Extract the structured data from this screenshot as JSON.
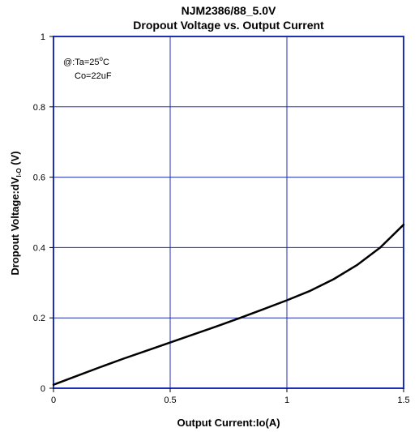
{
  "chart_data": {
    "type": "line",
    "title": "NJM2386/88_5.0V",
    "subtitle": "Dropout Voltage vs. Output Current",
    "xlabel": "Output Current:Io(A)",
    "ylabel_main": "Dropout Voltage:dV",
    "ylabel_sub": "I-O",
    "ylabel_unit": " (V)",
    "xlim": [
      0,
      1.5
    ],
    "ylim": [
      0,
      1
    ],
    "xticks": [
      0,
      0.5,
      1,
      1.5
    ],
    "xtick_labels": [
      "0",
      "0.5",
      "1",
      "1.5"
    ],
    "yticks": [
      0,
      0.2,
      0.4,
      0.6,
      0.8,
      1
    ],
    "ytick_labels": [
      "0",
      "0.2",
      "0.4",
      "0.6",
      "0.8",
      "1"
    ],
    "grid": true,
    "annotations": {
      "line1_prefix": "@:Ta=25",
      "line1_degree": "o",
      "line1_suffix": "C",
      "line2": "Co=22uF"
    },
    "series": [
      {
        "x": [
          0,
          0.1,
          0.2,
          0.3,
          0.4,
          0.5,
          0.6,
          0.7,
          0.8,
          0.9,
          1.0,
          1.1,
          1.2,
          1.3,
          1.4,
          1.5
        ],
        "y": [
          0.01,
          0.035,
          0.06,
          0.084,
          0.107,
          0.13,
          0.153,
          0.176,
          0.2,
          0.225,
          0.25,
          0.277,
          0.31,
          0.35,
          0.4,
          0.465
        ]
      }
    ],
    "colors": {
      "grid": "#1f2fb4",
      "frame": "#1f2fb4",
      "line": "#000000"
    }
  }
}
